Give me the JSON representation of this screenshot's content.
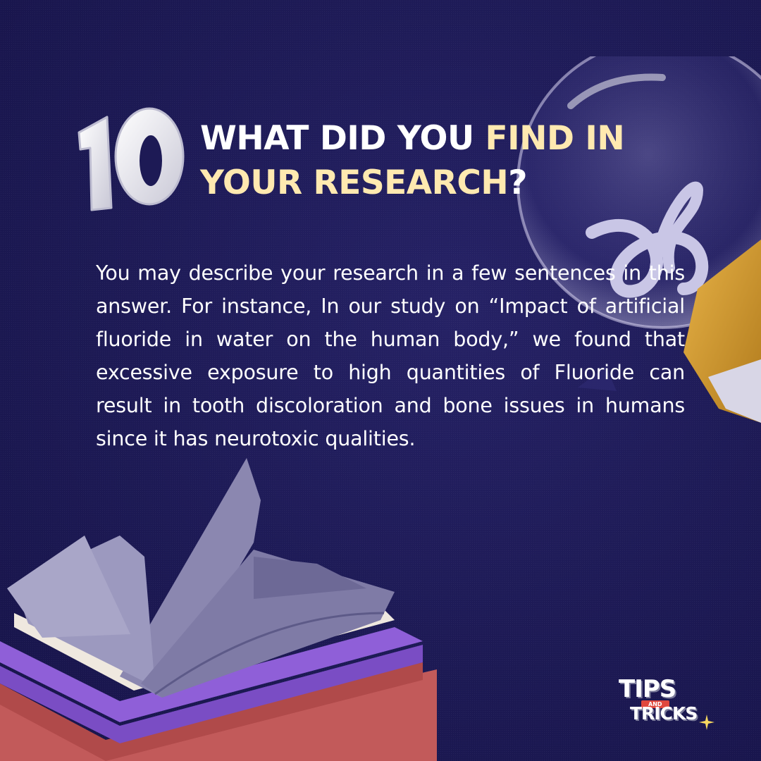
{
  "heading": {
    "number": "10",
    "part1": "WHAT DID YOU ",
    "accent1": "FIND IN YOUR RESEARCH",
    "part2": "?"
  },
  "body": "You may describe your research in a few sentences in this answer. For instance, In our study on “Impact of artificial fluoride in water on the human body,” we found that excessive exposure to high quantities of Fluoride can result in tooth discoloration and bone issues in humans since it has neurotoxic qualities.",
  "logo": {
    "tips": "TIPS",
    "and": "AND",
    "tricks": "TRICKS"
  },
  "colors": {
    "background": "#1d1a55",
    "accent": "#ffe9b0",
    "text": "#ffffff"
  },
  "icons": [
    "lightbulb-illustration",
    "book-stack-illustration",
    "number-badge-icon",
    "sparkle-icon"
  ]
}
